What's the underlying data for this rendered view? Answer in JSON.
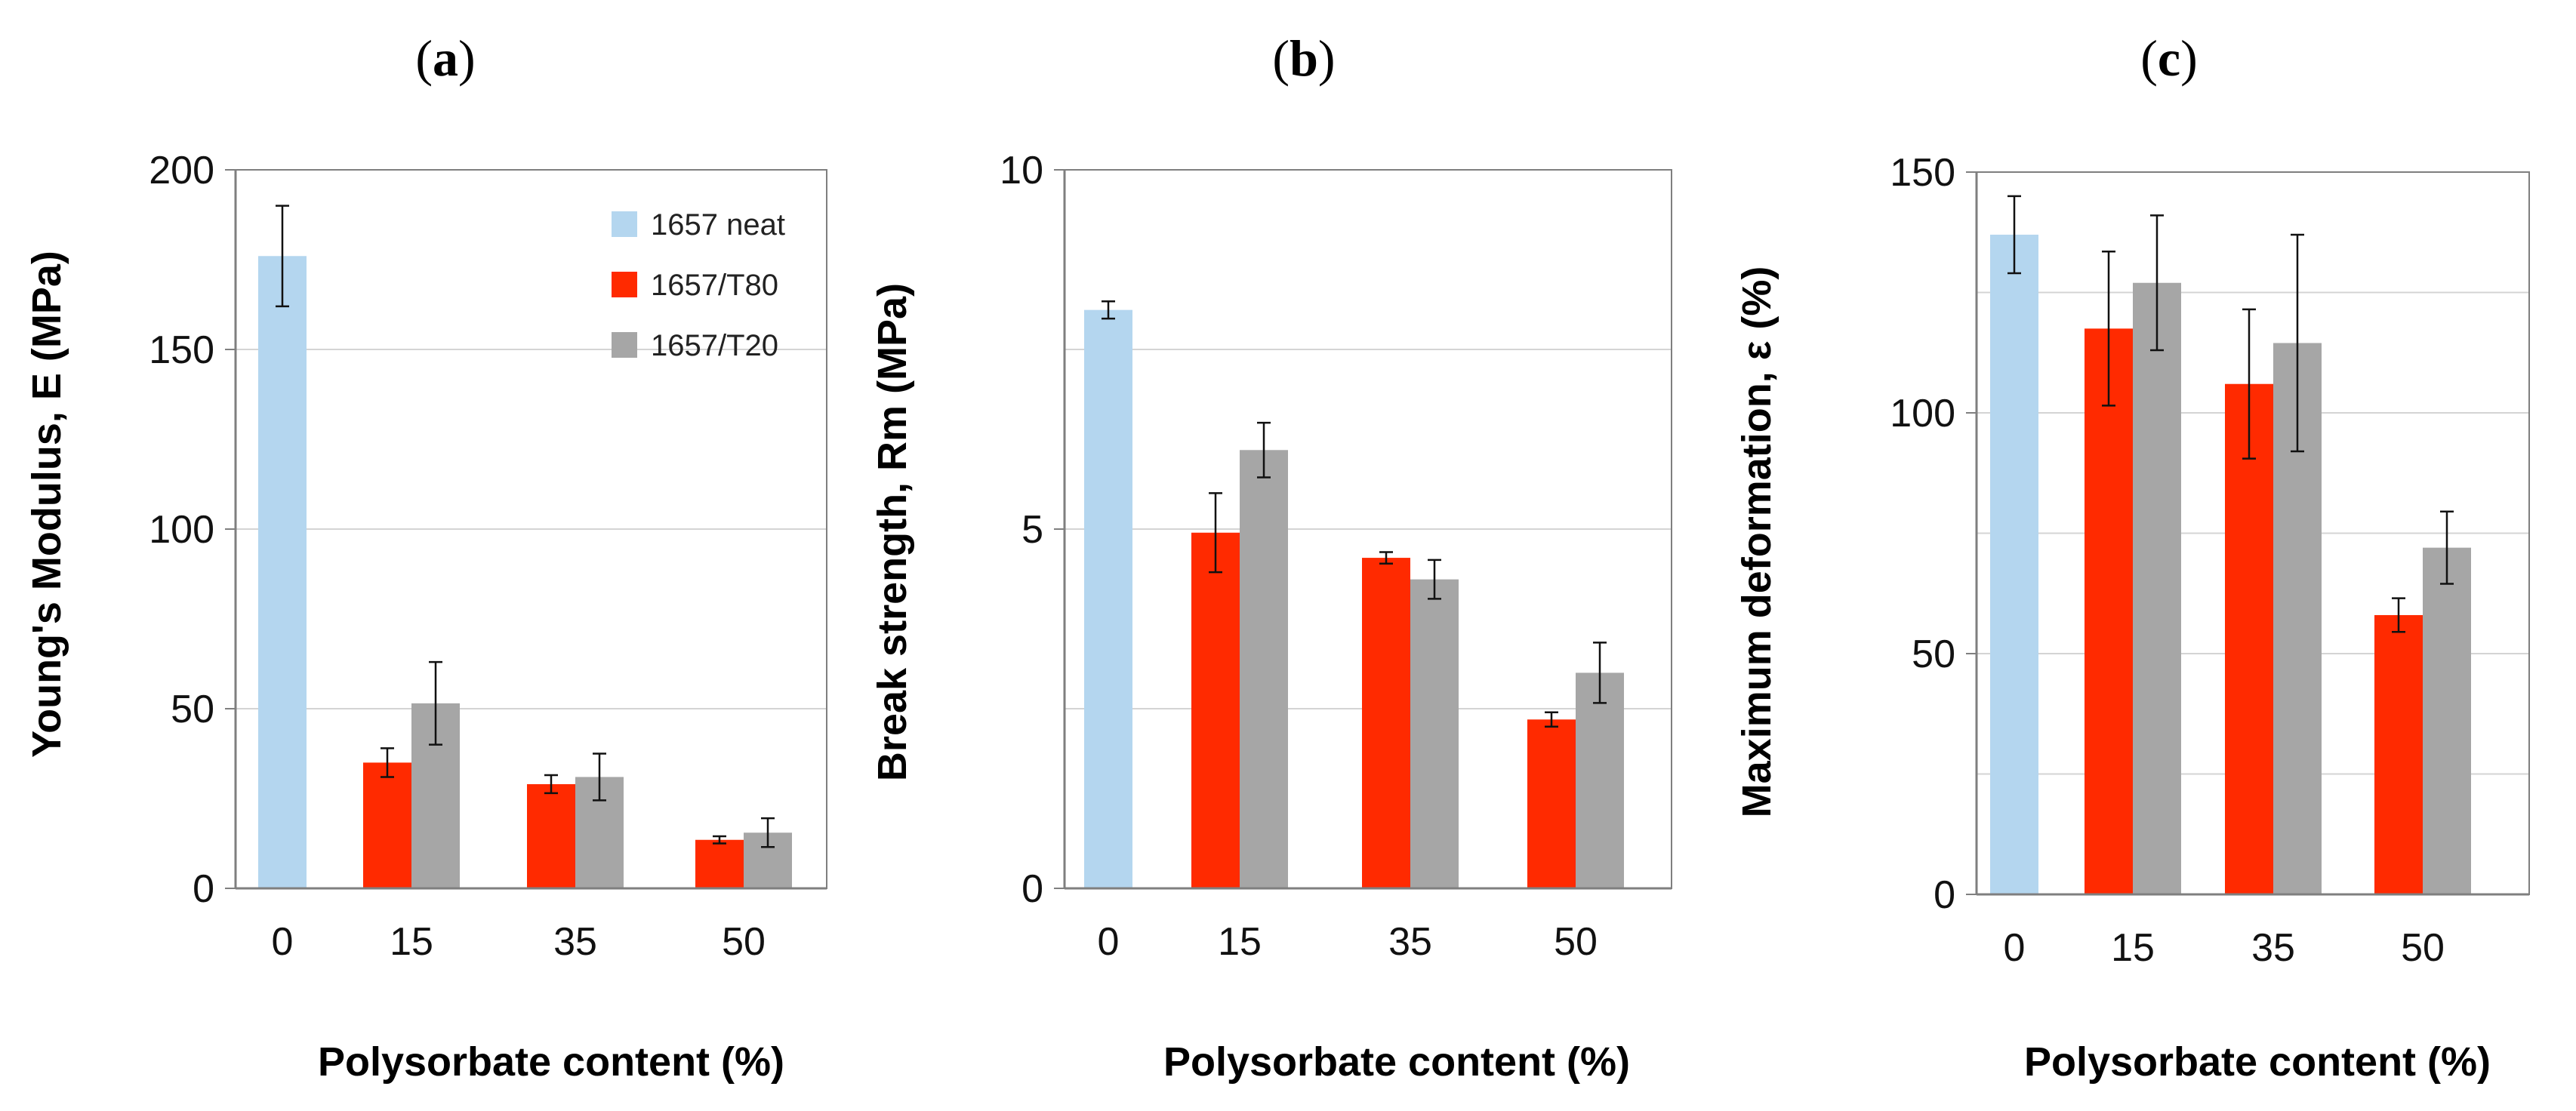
{
  "colors": {
    "neat": "#b4d6ef",
    "t80": "#ff2a00",
    "t20": "#a6a6a6",
    "grid": "#d4d4d4",
    "axis": "#7f7f7f",
    "error": "#111111"
  },
  "chart_data": [
    {
      "type": "bar",
      "panel_label": "a",
      "title": "",
      "xlabel": "Polysorbate content (%)",
      "ylabel": "Young's Modulus, E (MPa)",
      "ylim": [
        0,
        200
      ],
      "yticks": [
        0,
        50,
        100,
        150,
        200
      ],
      "ytick_labels": [
        "0",
        "50",
        "100",
        "150",
        "200"
      ],
      "grid": true,
      "categories": [
        "0",
        "15",
        "35",
        "50"
      ],
      "legend": {
        "placement": "top-right",
        "entries": [
          "1657 neat",
          "1657/T80",
          "1657/T20"
        ]
      },
      "series": [
        {
          "name": "1657 neat",
          "color_key": "neat",
          "values": [
            176,
            null,
            null,
            null
          ],
          "errors": [
            14,
            null,
            null,
            null
          ]
        },
        {
          "name": "1657/T80",
          "color_key": "t80",
          "values": [
            null,
            35,
            29,
            13.5
          ],
          "errors": [
            null,
            4,
            2.5,
            1
          ]
        },
        {
          "name": "1657/T20",
          "color_key": "t20",
          "values": [
            null,
            51.5,
            31,
            15.5
          ],
          "errors": [
            null,
            11.5,
            6.5,
            4
          ]
        }
      ]
    },
    {
      "type": "bar",
      "panel_label": "b",
      "title": "",
      "xlabel": "Polysorbate content (%)",
      "ylabel": "Break strength, Rm (MPa)",
      "ylim": [
        0,
        10
      ],
      "yticks": [
        0,
        5,
        10
      ],
      "ytick_labels": [
        "0",
        "5",
        "10"
      ],
      "grid": true,
      "gridlines": [
        2.5,
        5,
        7.5
      ],
      "categories": [
        "0",
        "15",
        "35",
        "50"
      ],
      "series": [
        {
          "name": "1657 neat",
          "color_key": "neat",
          "values": [
            8.05,
            null,
            null,
            null
          ],
          "errors": [
            0.12,
            null,
            null,
            null
          ]
        },
        {
          "name": "1657/T80",
          "color_key": "t80",
          "values": [
            null,
            4.95,
            4.6,
            2.35
          ],
          "errors": [
            null,
            0.55,
            0.08,
            0.1
          ]
        },
        {
          "name": "1657/T20",
          "color_key": "t20",
          "values": [
            null,
            6.1,
            4.3,
            3.0
          ],
          "errors": [
            null,
            0.38,
            0.27,
            0.42
          ]
        }
      ]
    },
    {
      "type": "bar",
      "panel_label": "c",
      "title": "",
      "xlabel": "Polysorbate content (%)",
      "ylabel": "Maximum deformation, ε (%)",
      "ylim": [
        0,
        150
      ],
      "yticks": [
        0,
        50,
        100,
        150
      ],
      "ytick_labels": [
        "0",
        "50",
        "100",
        "150"
      ],
      "grid": true,
      "gridlines": [
        25,
        50,
        75,
        100,
        125
      ],
      "categories": [
        "0",
        "15",
        "35",
        "50"
      ],
      "series": [
        {
          "name": "1657 neat",
          "color_key": "neat",
          "values": [
            137,
            null,
            null,
            null
          ],
          "errors": [
            8,
            null,
            null,
            null
          ]
        },
        {
          "name": "1657/T80",
          "color_key": "t80",
          "values": [
            null,
            117.5,
            106,
            58
          ],
          "errors": [
            null,
            16,
            15.5,
            3.5
          ]
        },
        {
          "name": "1657/T20",
          "color_key": "t20",
          "values": [
            null,
            127,
            114.5,
            72
          ],
          "errors": [
            null,
            14,
            22.5,
            7.5
          ]
        }
      ]
    }
  ]
}
